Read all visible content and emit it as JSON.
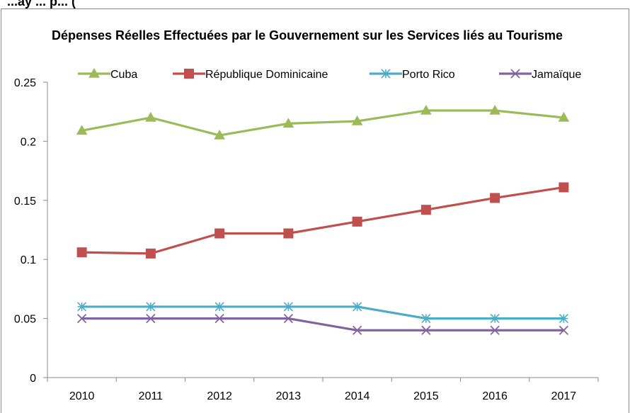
{
  "page_heading": "...ay ... p... (",
  "chart_data": {
    "type": "line",
    "title": "Dépenses Réelles Effectuées par le Gouvernement sur les Services liés au Tourisme",
    "xlabel": "",
    "ylabel": "",
    "categories": [
      "2010",
      "2011",
      "2012",
      "2013",
      "2014",
      "2015",
      "2016",
      "2017"
    ],
    "ylim": [
      0,
      0.25
    ],
    "yticks": [
      "0",
      "0.05",
      "0.1",
      "0.15",
      "0.2",
      "0.25"
    ],
    "grid": false,
    "legend_position": "top",
    "series": [
      {
        "name": "Cuba",
        "color": "#9bbb59",
        "marker": "triangle",
        "values": [
          0.209,
          0.22,
          0.205,
          0.215,
          0.217,
          0.226,
          0.226,
          0.22
        ]
      },
      {
        "name": "République Dominicaine",
        "color": "#c0504d",
        "marker": "square",
        "values": [
          0.106,
          0.105,
          0.122,
          0.122,
          0.132,
          0.142,
          0.152,
          0.161
        ]
      },
      {
        "name": "Porto Rico",
        "color": "#4bacc6",
        "marker": "star",
        "values": [
          0.06,
          0.06,
          0.06,
          0.06,
          0.06,
          0.05,
          0.05,
          0.05
        ]
      },
      {
        "name": "Jamaïque",
        "color": "#8064a2",
        "marker": "x",
        "values": [
          0.05,
          0.05,
          0.05,
          0.05,
          0.04,
          0.04,
          0.04,
          0.04
        ]
      }
    ]
  }
}
